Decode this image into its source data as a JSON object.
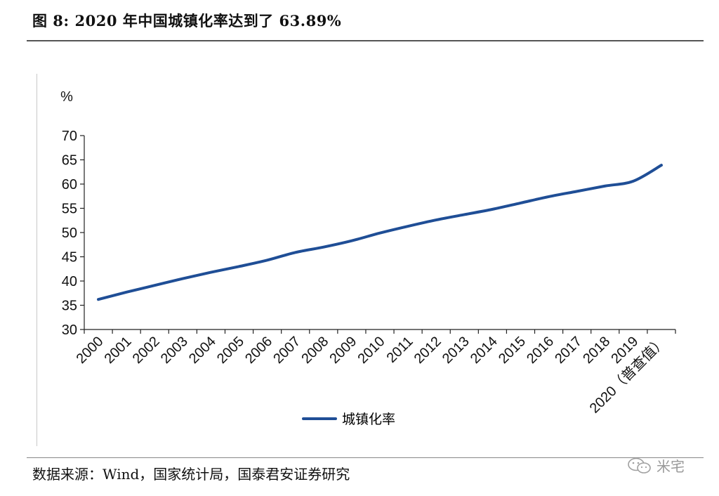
{
  "figure": {
    "title": "图 8:  2020 年中国城镇化率达到了 63.89%",
    "source": "数据来源：Wind，国家统计局，国泰君安证券研究",
    "watermark_text": "米宅",
    "watermark_icon": "wechat-icon",
    "line_color": "#1f4e96"
  },
  "chart_data": {
    "type": "line",
    "unit_label": "%",
    "categories": [
      "2000",
      "2001",
      "2002",
      "2003",
      "2004",
      "2005",
      "2006",
      "2007",
      "2008",
      "2009",
      "2010",
      "2011",
      "2012",
      "2013",
      "2014",
      "2015",
      "2016",
      "2017",
      "2018",
      "2019",
      "2020（普查值）"
    ],
    "series": [
      {
        "name": "城镇化率",
        "values": [
          36.2,
          37.7,
          39.1,
          40.5,
          41.8,
          43.0,
          44.3,
          45.9,
          47.0,
          48.3,
          49.9,
          51.3,
          52.6,
          53.7,
          54.8,
          56.1,
          57.4,
          58.5,
          59.6,
          60.6,
          63.89
        ]
      }
    ],
    "ylim": [
      30,
      70
    ],
    "yticks": [
      30,
      35,
      40,
      45,
      50,
      55,
      60,
      65,
      70
    ],
    "legend_position": "bottom",
    "grid": false
  }
}
